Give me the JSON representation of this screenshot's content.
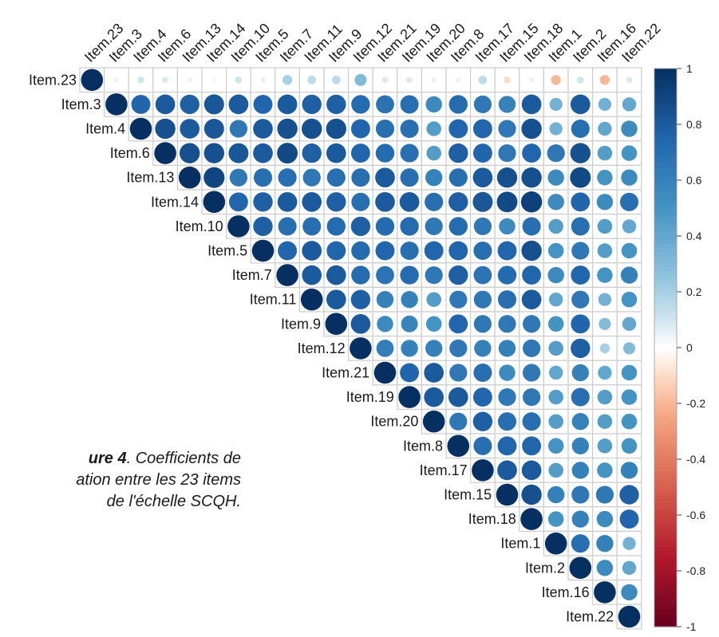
{
  "chart_data": {
    "type": "heatmap",
    "subtype": "correlation-upper-triangle-circles",
    "items": [
      "Item.23",
      "Item.3",
      "Item.4",
      "Item.6",
      "Item.13",
      "Item.14",
      "Item.10",
      "Item.5",
      "Item.7",
      "Item.11",
      "Item.9",
      "Item.12",
      "Item.21",
      "Item.19",
      "Item.20",
      "Item.8",
      "Item.17",
      "Item.15",
      "Item.18",
      "Item.1",
      "Item.2",
      "Item.16",
      "Item.22"
    ],
    "matrix_upper": [
      [
        1,
        0.05,
        0.1,
        0.08,
        0.05,
        0.03,
        0.1,
        0.05,
        0.2,
        0.15,
        0.15,
        0.3,
        0.08,
        0.08,
        0.05,
        0.05,
        0.15,
        -0.1,
        0.05,
        -0.2,
        0.1,
        -0.2,
        0.08
      ],
      [
        1,
        0.75,
        0.8,
        0.78,
        0.82,
        0.8,
        0.75,
        0.8,
        0.78,
        0.78,
        0.72,
        0.68,
        0.7,
        0.55,
        0.72,
        0.65,
        0.6,
        0.8,
        0.35,
        0.8,
        0.35,
        0.4
      ],
      [
        1,
        0.85,
        0.8,
        0.82,
        0.65,
        0.8,
        0.85,
        0.85,
        0.85,
        0.75,
        0.7,
        0.7,
        0.45,
        0.75,
        0.75,
        0.65,
        0.85,
        0.35,
        0.7,
        0.4,
        0.55
      ],
      [
        1,
        0.85,
        0.85,
        0.82,
        0.8,
        0.88,
        0.78,
        0.8,
        0.75,
        0.72,
        0.7,
        0.45,
        0.78,
        0.75,
        0.65,
        0.75,
        0.65,
        0.85,
        0.45,
        0.5
      ],
      [
        1,
        0.9,
        0.65,
        0.7,
        0.7,
        0.65,
        0.7,
        0.7,
        0.8,
        0.7,
        0.6,
        0.7,
        0.8,
        0.85,
        0.85,
        0.55,
        0.88,
        0.5,
        0.55
      ],
      [
        1,
        0.75,
        0.78,
        0.8,
        0.8,
        0.78,
        0.7,
        0.8,
        0.8,
        0.7,
        0.78,
        0.82,
        0.88,
        0.92,
        0.55,
        0.75,
        0.55,
        0.7
      ],
      [
        1,
        0.78,
        0.7,
        0.7,
        0.72,
        0.78,
        0.72,
        0.72,
        0.65,
        0.72,
        0.65,
        0.55,
        0.7,
        0.45,
        0.7,
        0.45,
        0.4
      ],
      [
        1,
        0.75,
        0.8,
        0.75,
        0.72,
        0.75,
        0.7,
        0.75,
        0.75,
        0.7,
        0.75,
        0.85,
        0.5,
        0.65,
        0.45,
        0.5
      ],
      [
        1,
        0.8,
        0.8,
        0.72,
        0.68,
        0.72,
        0.65,
        0.78,
        0.68,
        0.72,
        0.75,
        0.55,
        0.75,
        0.5,
        0.6
      ],
      [
        1,
        0.8,
        0.78,
        0.6,
        0.6,
        0.45,
        0.65,
        0.65,
        0.7,
        0.8,
        0.4,
        0.65,
        0.35,
        0.5
      ],
      [
        1,
        0.8,
        0.55,
        0.58,
        0.5,
        0.75,
        0.65,
        0.65,
        0.65,
        0.5,
        0.75,
        0.3,
        0.4
      ],
      [
        1,
        0.62,
        0.6,
        0.6,
        0.65,
        0.6,
        0.6,
        0.65,
        0.45,
        0.78,
        0.2,
        0.3
      ],
      [
        1,
        0.75,
        0.8,
        0.65,
        0.7,
        0.55,
        0.65,
        0.4,
        0.6,
        0.4,
        0.5
      ],
      [
        1,
        0.8,
        0.8,
        0.75,
        0.65,
        0.65,
        0.45,
        0.7,
        0.45,
        0.5
      ],
      [
        1,
        0.65,
        0.78,
        0.7,
        0.7,
        0.45,
        0.6,
        0.45,
        0.5
      ],
      [
        1,
        0.7,
        0.75,
        0.75,
        0.5,
        0.6,
        0.45,
        0.5
      ],
      [
        1,
        0.8,
        0.8,
        0.45,
        0.6,
        0.5,
        0.6
      ],
      [
        1,
        0.85,
        0.6,
        0.65,
        0.65,
        0.78
      ],
      [
        1,
        0.5,
        0.6,
        0.55,
        0.75
      ],
      [
        1,
        0.7,
        0.6,
        0.35
      ],
      [
        1,
        0.55,
        0.4
      ],
      [
        1,
        0.55
      ],
      [
        1
      ]
    ],
    "colorbar": {
      "range": [
        -1,
        1
      ],
      "ticks": [
        "1",
        "0.8",
        "0.6",
        "0.4",
        "0.2",
        "0",
        "-0.2",
        "-0.4",
        "-0.6",
        "-0.8",
        "-1"
      ],
      "placement": "right"
    },
    "colors": {
      "negative": "#67001F",
      "neutral": "#FFFFFF",
      "positive": "#053061",
      "grid": "#CCCCCC"
    }
  },
  "caption": {
    "figure_label": "ure 4",
    "line1_rest": ". Coefficients de",
    "line2": "ation entre les 23 items",
    "line3": "de l'échelle SCQH."
  }
}
